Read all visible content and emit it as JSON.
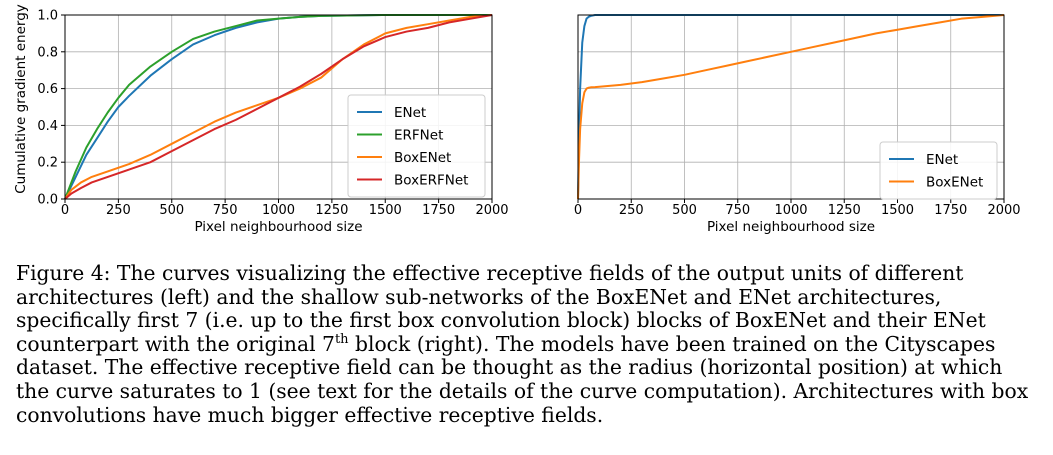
{
  "colors": {
    "ENet": "#1f77b4",
    "ERFNet": "#2ca02c",
    "BoxENet": "#ff7f0e",
    "BoxERFNet": "#d62728"
  },
  "chart_data": [
    {
      "type": "line",
      "ylabel": "Cumulative gradient energy",
      "xlabel": "Pixel neighbourhood size",
      "xlim": [
        0,
        2000
      ],
      "ylim": [
        0,
        1.0
      ],
      "xticks": [
        0,
        250,
        500,
        750,
        1000,
        1250,
        1500,
        1750,
        2000
      ],
      "yticks": [
        "0.0",
        "0.2",
        "0.4",
        "0.6",
        "0.8",
        "1.0"
      ],
      "legend_position": "center-right",
      "grid": true,
      "series": [
        {
          "name": "ENet",
          "color": "#1f77b4",
          "x": [
            0,
            50,
            100,
            150,
            200,
            250,
            300,
            400,
            500,
            600,
            700,
            800,
            900,
            1000,
            1100,
            1200,
            1500,
            2000
          ],
          "y": [
            0,
            0.12,
            0.24,
            0.33,
            0.42,
            0.5,
            0.56,
            0.67,
            0.76,
            0.84,
            0.89,
            0.93,
            0.96,
            0.98,
            0.99,
            0.995,
            1.0,
            1.0
          ]
        },
        {
          "name": "ERFNet",
          "color": "#2ca02c",
          "x": [
            0,
            50,
            100,
            150,
            200,
            250,
            300,
            400,
            500,
            600,
            700,
            800,
            900,
            1000,
            1100,
            1200,
            1500,
            2000
          ],
          "y": [
            0,
            0.15,
            0.28,
            0.38,
            0.47,
            0.55,
            0.62,
            0.72,
            0.8,
            0.87,
            0.91,
            0.94,
            0.97,
            0.98,
            0.99,
            0.995,
            1.0,
            1.0
          ]
        },
        {
          "name": "BoxENet",
          "color": "#ff7f0e",
          "x": [
            0,
            30,
            75,
            125,
            200,
            300,
            400,
            500,
            600,
            700,
            800,
            900,
            1000,
            1100,
            1200,
            1300,
            1400,
            1500,
            1600,
            1700,
            1800,
            1900,
            2000
          ],
          "y": [
            0,
            0.05,
            0.09,
            0.12,
            0.15,
            0.19,
            0.24,
            0.3,
            0.36,
            0.42,
            0.47,
            0.51,
            0.55,
            0.6,
            0.66,
            0.76,
            0.84,
            0.9,
            0.93,
            0.95,
            0.97,
            0.99,
            1.0
          ]
        },
        {
          "name": "BoxERFNet",
          "color": "#d62728",
          "x": [
            0,
            30,
            75,
            125,
            200,
            300,
            400,
            500,
            600,
            700,
            800,
            900,
            1000,
            1100,
            1200,
            1300,
            1400,
            1500,
            1600,
            1700,
            1800,
            1900,
            2000
          ],
          "y": [
            0,
            0.03,
            0.06,
            0.09,
            0.12,
            0.16,
            0.2,
            0.26,
            0.32,
            0.38,
            0.43,
            0.49,
            0.55,
            0.61,
            0.68,
            0.76,
            0.83,
            0.88,
            0.91,
            0.93,
            0.96,
            0.98,
            1.0
          ]
        }
      ]
    },
    {
      "type": "line",
      "xlabel": "Pixel neighbourhood size",
      "xlim": [
        0,
        2000
      ],
      "ylim": [
        0,
        1.0
      ],
      "xticks": [
        0,
        250,
        500,
        750,
        1000,
        1250,
        1500,
        1750,
        2000
      ],
      "legend_position": "lower-right",
      "grid": true,
      "series": [
        {
          "name": "ENet",
          "color": "#1f77b4",
          "x": [
            0,
            5,
            10,
            20,
            30,
            40,
            50,
            60,
            80,
            100,
            2000
          ],
          "y": [
            0,
            0.35,
            0.6,
            0.85,
            0.94,
            0.98,
            0.99,
            0.995,
            1.0,
            1.0,
            1.0
          ]
        },
        {
          "name": "BoxENet",
          "color": "#ff7f0e",
          "x": [
            0,
            5,
            10,
            20,
            30,
            40,
            50,
            60,
            80,
            100,
            200,
            300,
            400,
            500,
            600,
            700,
            800,
            900,
            1000,
            1100,
            1200,
            1300,
            1400,
            1500,
            1600,
            1700,
            1800,
            1900,
            2000
          ],
          "y": [
            0,
            0.22,
            0.38,
            0.52,
            0.58,
            0.6,
            0.605,
            0.607,
            0.608,
            0.61,
            0.62,
            0.635,
            0.655,
            0.675,
            0.7,
            0.725,
            0.75,
            0.775,
            0.8,
            0.825,
            0.85,
            0.875,
            0.9,
            0.92,
            0.94,
            0.96,
            0.98,
            0.99,
            1.0
          ]
        }
      ]
    }
  ],
  "caption": {
    "figure_label": "Figure 4:",
    "text_before_sup": " The curves visualizing the effective receptive fields of the output units of different architectures (left) and the shallow sub-networks of the BoxENet and ENet architectures, specifically first 7 (i.e. up to the first box convolution block) blocks of BoxENet and their ENet counterpart with the original 7",
    "sup": "th",
    "text_after_sup": " block (right). The models have been trained on the Cityscapes dataset. The effective receptive field can be thought as the radius (horizontal position) at which the curve saturates to 1 (see text for the details of the curve computation). Architectures with box convolutions have much bigger effective receptive fields."
  }
}
